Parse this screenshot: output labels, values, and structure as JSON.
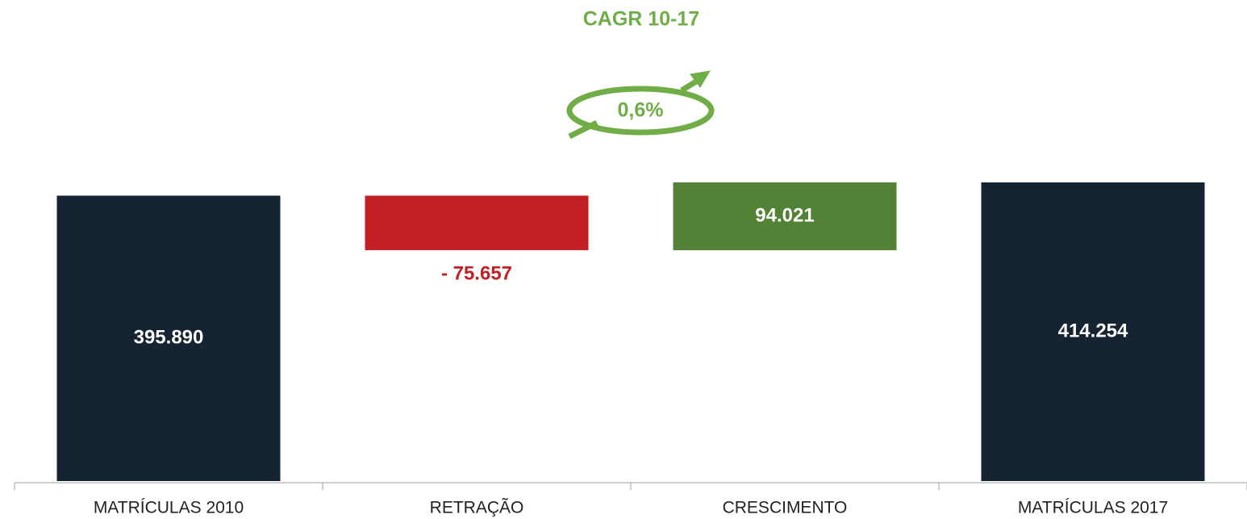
{
  "chart_data": {
    "type": "waterfall",
    "title": "CAGR 10-17",
    "annotation": "0,6%",
    "categories": [
      "MATRÍCULAS 2010",
      "RETRAÇÃO",
      "CRESCIMENTO",
      "MATRÍCULAS 2017"
    ],
    "values": [
      395890,
      -75657,
      94021,
      414254
    ],
    "value_labels": [
      "395.890",
      "- 75.657",
      "94.021",
      "414.254"
    ],
    "totals": [
      true,
      false,
      false,
      true
    ],
    "colors": [
      "#152333",
      "#c32026",
      "#538135",
      "#152333"
    ],
    "title_color": "#70ad47"
  }
}
